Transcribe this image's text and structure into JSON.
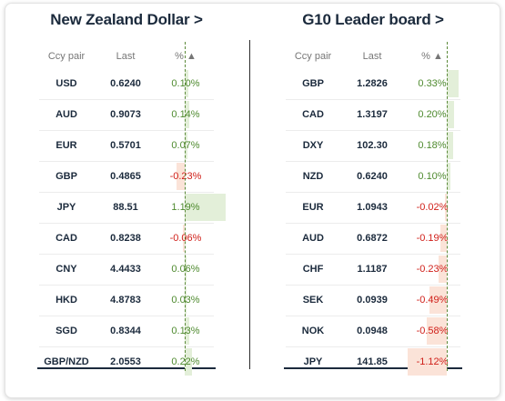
{
  "left": {
    "title": "New Zealand Dollar >",
    "headers": {
      "pair": "Ccy pair",
      "last": "Last",
      "pct": "% ▲"
    },
    "rows": [
      {
        "pair": "USD",
        "last": "0.6240",
        "pct": "0.10%",
        "value": 0.1
      },
      {
        "pair": "AUD",
        "last": "0.9073",
        "pct": "0.14%",
        "value": 0.14
      },
      {
        "pair": "EUR",
        "last": "0.5701",
        "pct": "0.07%",
        "value": 0.07
      },
      {
        "pair": "GBP",
        "last": "0.4865",
        "pct": "-0.23%",
        "value": -0.23
      },
      {
        "pair": "JPY",
        "last": "88.51",
        "pct": "1.19%",
        "value": 1.19
      },
      {
        "pair": "CAD",
        "last": "0.8238",
        "pct": "-0.06%",
        "value": -0.06
      },
      {
        "pair": "CNY",
        "last": "4.4433",
        "pct": "0.06%",
        "value": 0.06
      },
      {
        "pair": "HKD",
        "last": "4.8783",
        "pct": "0.03%",
        "value": 0.03
      },
      {
        "pair": "SGD",
        "last": "0.8344",
        "pct": "0.13%",
        "value": 0.13
      },
      {
        "pair": "GBP/NZD",
        "last": "2.0553",
        "pct": "0.22%",
        "value": 0.22
      }
    ]
  },
  "right": {
    "title": "G10 Leader board >",
    "headers": {
      "pair": "Ccy pair",
      "last": "Last",
      "pct": "% ▲"
    },
    "rows": [
      {
        "pair": "GBP",
        "last": "1.2826",
        "pct": "0.33%",
        "value": 0.33
      },
      {
        "pair": "CAD",
        "last": "1.3197",
        "pct": "0.20%",
        "value": 0.2
      },
      {
        "pair": "DXY",
        "last": "102.30",
        "pct": "0.18%",
        "value": 0.18
      },
      {
        "pair": "NZD",
        "last": "0.6240",
        "pct": "0.10%",
        "value": 0.1
      },
      {
        "pair": "EUR",
        "last": "1.0943",
        "pct": "-0.02%",
        "value": -0.02
      },
      {
        "pair": "AUD",
        "last": "0.6872",
        "pct": "-0.19%",
        "value": -0.19
      },
      {
        "pair": "CHF",
        "last": "1.1187",
        "pct": "-0.23%",
        "value": -0.23
      },
      {
        "pair": "SEK",
        "last": "0.0939",
        "pct": "-0.49%",
        "value": -0.49
      },
      {
        "pair": "NOK",
        "last": "0.0948",
        "pct": "-0.58%",
        "value": -0.58
      },
      {
        "pair": "JPY",
        "last": "141.85",
        "pct": "-1.12%",
        "value": -1.12
      }
    ]
  },
  "colors": {
    "positive_text": "#4e8a2e",
    "negative_text": "#d0201a",
    "positive_bar": "#e3efd9",
    "negative_bar": "#fbe3d8",
    "title": "#1b2a3c"
  }
}
